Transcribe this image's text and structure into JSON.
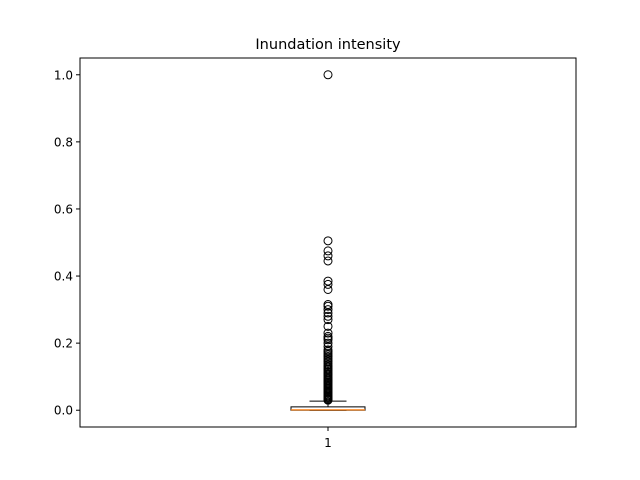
{
  "chart_data": {
    "type": "box",
    "title": "Inundation intensity",
    "xlabel": "",
    "ylabel": "",
    "categories": [
      "1"
    ],
    "ylim": [
      -0.05,
      1.05
    ],
    "yticks": [
      0.0,
      0.2,
      0.4,
      0.6,
      0.8,
      1.0
    ],
    "ytick_labels": [
      "0.0",
      "0.2",
      "0.4",
      "0.6",
      "0.8",
      "1.0"
    ],
    "grid": false,
    "box": {
      "whisker_low": 0.0,
      "q1": 0.0,
      "median": 0.001,
      "q3": 0.01,
      "whisker_high": 0.027
    },
    "outliers": [
      0.03,
      0.032,
      0.035,
      0.038,
      0.04,
      0.043,
      0.046,
      0.05,
      0.053,
      0.056,
      0.06,
      0.063,
      0.066,
      0.07,
      0.073,
      0.077,
      0.08,
      0.083,
      0.087,
      0.09,
      0.094,
      0.098,
      0.102,
      0.106,
      0.11,
      0.114,
      0.118,
      0.122,
      0.126,
      0.13,
      0.135,
      0.14,
      0.145,
      0.15,
      0.155,
      0.16,
      0.165,
      0.17,
      0.175,
      0.18,
      0.19,
      0.2,
      0.21,
      0.215,
      0.22,
      0.23,
      0.25,
      0.27,
      0.28,
      0.29,
      0.3,
      0.31,
      0.315,
      0.36,
      0.375,
      0.385,
      0.445,
      0.46,
      0.475,
      0.505,
      1.0
    ],
    "colors": {
      "box": "#000000",
      "median": "#ff7f0e",
      "outlier": "#000000"
    }
  }
}
